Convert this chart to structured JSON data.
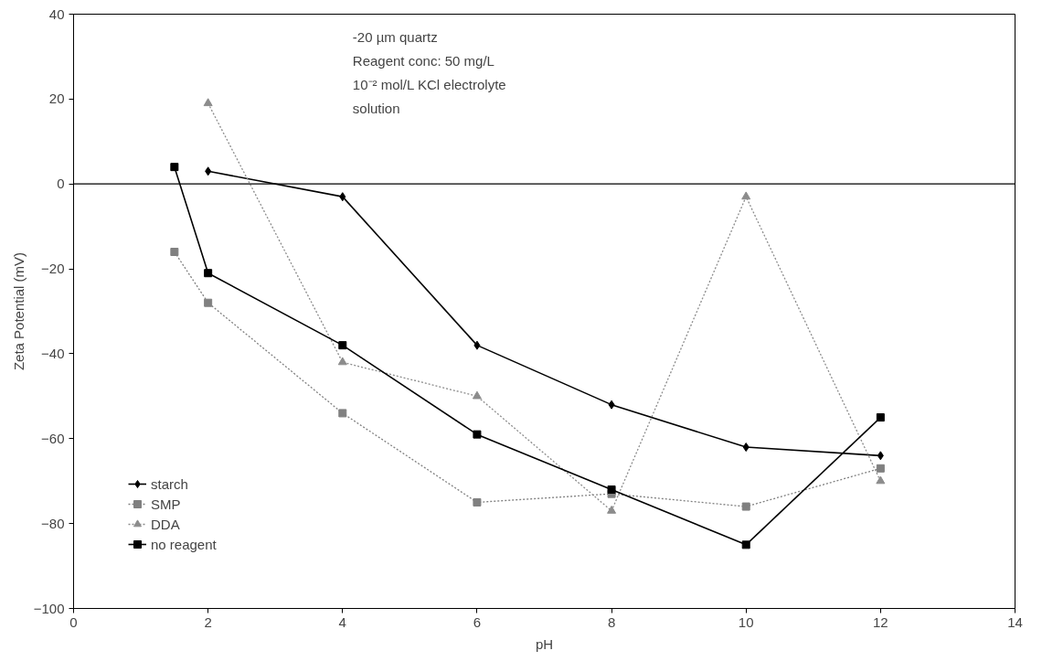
{
  "chart_data": {
    "type": "line",
    "xlabel": "pH",
    "ylabel": "Zeta Potential (mV)",
    "xlim": [
      0,
      14
    ],
    "xticks": [
      0,
      2,
      4,
      6,
      8,
      10,
      12,
      14
    ],
    "ylim": [
      -100,
      40
    ],
    "yticks": [
      -100,
      -80,
      -60,
      -40,
      -20,
      0,
      20,
      40
    ],
    "grid": false,
    "legend": "bottom left",
    "ref_lines": [
      {
        "axis": "y",
        "value": 0,
        "color": "#000000"
      }
    ],
    "annotations": [
      "-20 µm quartz",
      "Reagent conc: 50 mg/L",
      "10⁻² mol/L KCl electrolyte",
      "solution"
    ],
    "series": [
      {
        "name": "starch",
        "color": "#000000",
        "marker": "diamond",
        "line_style": "solid",
        "x": [
          2,
          4,
          6,
          8,
          10,
          12
        ],
        "values": [
          3,
          -3,
          -38,
          -52,
          -62,
          -64
        ]
      },
      {
        "name": "SMP",
        "color": "#808080",
        "marker": "square",
        "line_style": "dotted",
        "x": [
          1.5,
          2,
          4,
          6,
          8,
          10,
          12
        ],
        "values": [
          -16,
          -28,
          -54,
          -75,
          -73,
          -76,
          -67
        ]
      },
      {
        "name": "DDA",
        "color": "#8c8c8c",
        "marker": "triangle",
        "line_style": "dotted",
        "x": [
          2,
          4,
          6,
          8,
          10,
          12
        ],
        "values": [
          19,
          -42,
          -50,
          -77,
          -3,
          -70
        ]
      },
      {
        "name": "no reagent",
        "color": "#000000",
        "marker": "square",
        "line_style": "solid",
        "x": [
          1.5,
          2,
          4,
          6,
          8,
          10,
          12
        ],
        "values": [
          4,
          -21,
          -38,
          -59,
          -72,
          -85,
          -55
        ]
      }
    ]
  }
}
